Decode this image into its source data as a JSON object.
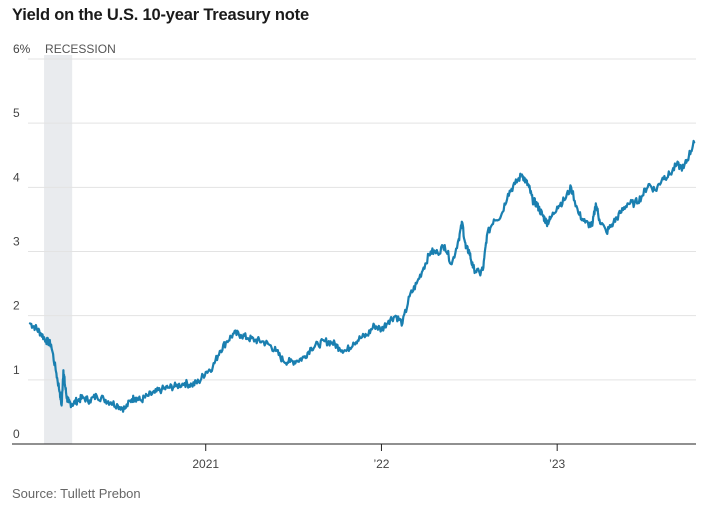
{
  "chart_data": {
    "type": "line",
    "title": "Yield on the U.S. 10-year Treasury note",
    "source": "Source: Tullett Prebon",
    "ylabel": "",
    "xlabel": "",
    "ylim": [
      0,
      6
    ],
    "xlim": [
      2020.0,
      2023.79
    ],
    "y_ticks": [
      {
        "value": 0,
        "label": "0"
      },
      {
        "value": 1,
        "label": "1"
      },
      {
        "value": 2,
        "label": "2"
      },
      {
        "value": 3,
        "label": "3"
      },
      {
        "value": 4,
        "label": "4"
      },
      {
        "value": 5,
        "label": "5"
      },
      {
        "value": 6,
        "label": "6%"
      }
    ],
    "x_ticks": [
      {
        "value": 2021.0,
        "label": "2021"
      },
      {
        "value": 2022.0,
        "label": "’22"
      },
      {
        "value": 2023.0,
        "label": "’23"
      }
    ],
    "recession": {
      "label": "RECESSION",
      "start": 2020.08,
      "end": 2020.24
    },
    "line_color": "#1a7fb0",
    "grid": true,
    "series": [
      {
        "name": "10-year Treasury yield",
        "x": [
          2020.0,
          2020.03,
          2020.06,
          2020.09,
          2020.12,
          2020.15,
          2020.17,
          2020.18,
          2020.19,
          2020.2,
          2020.21,
          2020.22,
          2020.24,
          2020.27,
          2020.3,
          2020.34,
          2020.38,
          2020.42,
          2020.46,
          2020.5,
          2020.54,
          2020.58,
          2020.6,
          2020.63,
          2020.67,
          2020.71,
          2020.75,
          2020.79,
          2020.83,
          2020.88,
          2020.92,
          2020.96,
          2021.0,
          2021.04,
          2021.08,
          2021.12,
          2021.16,
          2021.2,
          2021.24,
          2021.28,
          2021.32,
          2021.36,
          2021.4,
          2021.44,
          2021.48,
          2021.52,
          2021.56,
          2021.6,
          2021.64,
          2021.68,
          2021.72,
          2021.76,
          2021.8,
          2021.84,
          2021.88,
          2021.92,
          2021.96,
          2022.0,
          2022.04,
          2022.08,
          2022.12,
          2022.16,
          2022.2,
          2022.24,
          2022.28,
          2022.32,
          2022.36,
          2022.4,
          2022.44,
          2022.46,
          2022.48,
          2022.5,
          2022.52,
          2022.56,
          2022.58,
          2022.6,
          2022.64,
          2022.68,
          2022.72,
          2022.76,
          2022.8,
          2022.82,
          2022.84,
          2022.86,
          2022.88,
          2022.9,
          2022.92,
          2022.94,
          2022.96,
          2023.0,
          2023.04,
          2023.08,
          2023.12,
          2023.16,
          2023.2,
          2023.22,
          2023.24,
          2023.28,
          2023.32,
          2023.36,
          2023.4,
          2023.44,
          2023.48,
          2023.52,
          2023.56,
          2023.6,
          2023.64,
          2023.68,
          2023.72,
          2023.75,
          2023.78
        ],
        "values": [
          1.88,
          1.82,
          1.73,
          1.62,
          1.55,
          1.1,
          0.8,
          0.6,
          1.15,
          0.9,
          0.72,
          0.65,
          0.62,
          0.68,
          0.72,
          0.68,
          0.75,
          0.7,
          0.65,
          0.6,
          0.55,
          0.7,
          0.72,
          0.68,
          0.75,
          0.8,
          0.85,
          0.88,
          0.9,
          0.95,
          0.92,
          0.97,
          1.12,
          1.2,
          1.45,
          1.6,
          1.72,
          1.7,
          1.65,
          1.62,
          1.6,
          1.55,
          1.45,
          1.3,
          1.28,
          1.3,
          1.35,
          1.5,
          1.55,
          1.6,
          1.58,
          1.5,
          1.45,
          1.58,
          1.65,
          1.7,
          1.85,
          1.78,
          1.92,
          2.0,
          1.88,
          2.3,
          2.5,
          2.75,
          3.0,
          2.98,
          3.1,
          2.8,
          3.2,
          3.45,
          3.05,
          3.0,
          2.75,
          2.65,
          2.75,
          3.25,
          3.5,
          3.55,
          3.9,
          4.05,
          4.2,
          4.1,
          4.0,
          3.8,
          3.75,
          3.65,
          3.55,
          3.45,
          3.5,
          3.7,
          3.8,
          4.0,
          3.6,
          3.45,
          3.4,
          3.75,
          3.5,
          3.3,
          3.45,
          3.6,
          3.75,
          3.75,
          3.85,
          4.05,
          3.95,
          4.15,
          4.2,
          4.35,
          4.3,
          4.5,
          4.7
        ]
      }
    ]
  }
}
